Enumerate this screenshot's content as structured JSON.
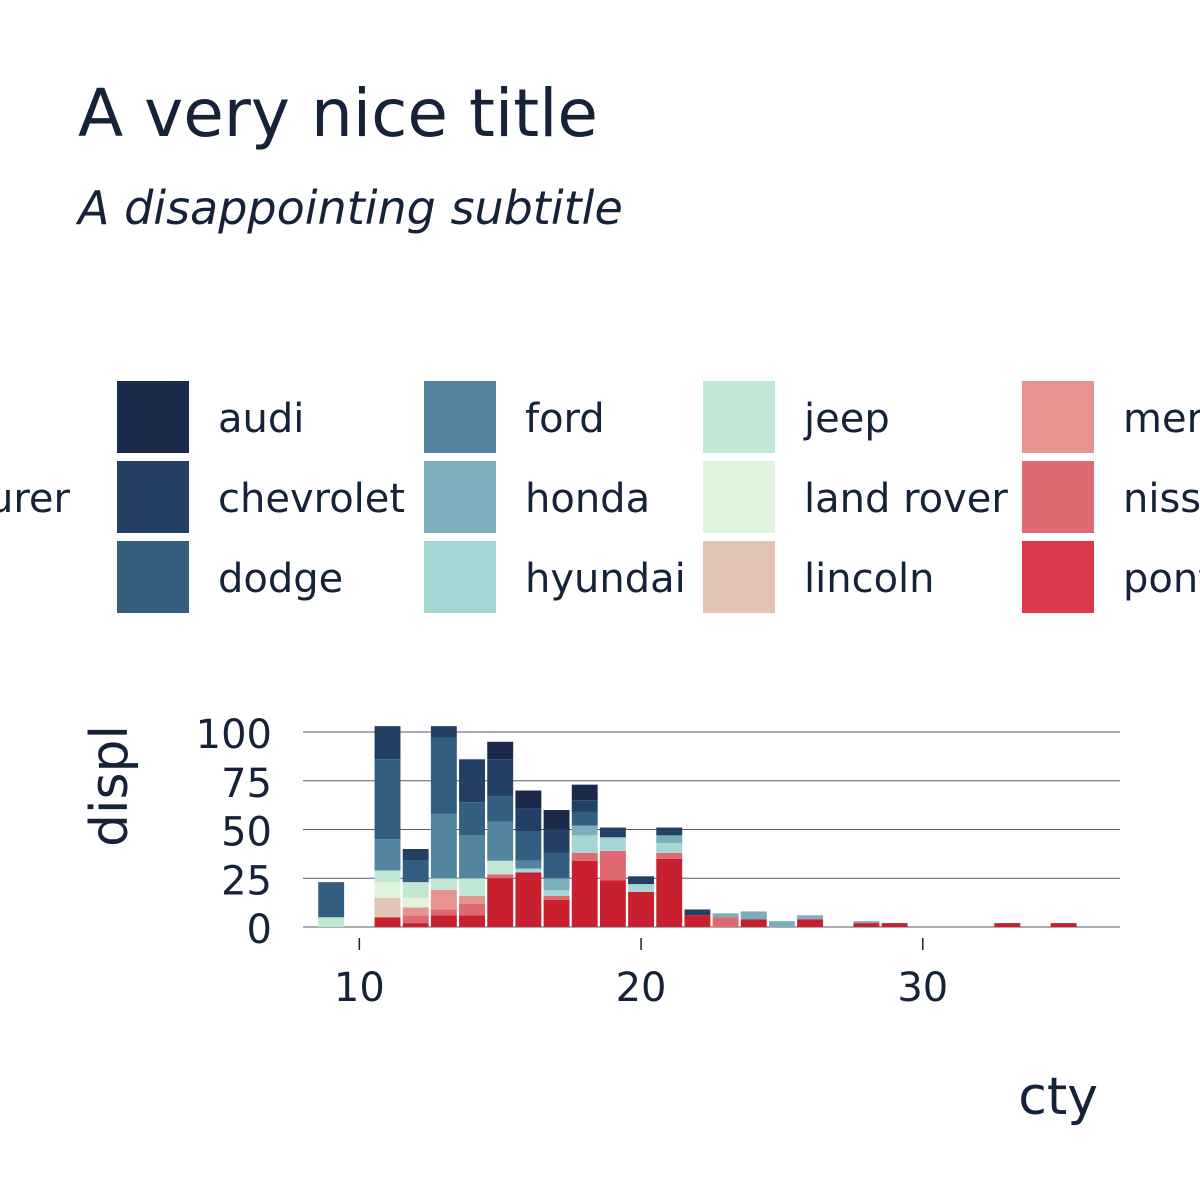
{
  "title": "A very nice title",
  "subtitle": "A disappointing subtitle",
  "chart_data": {
    "type": "bar",
    "stacked": true,
    "title": "A very nice title",
    "subtitle": "A disappointing subtitle",
    "xlabel": "cty",
    "ylabel": "displ",
    "legend_title_visible": "urer",
    "xlim": [
      8,
      37
    ],
    "ylim": [
      0,
      100
    ],
    "xticks": [
      10,
      20,
      30
    ],
    "yticks": [
      0,
      25,
      50,
      75,
      100
    ],
    "grid": "horizontal",
    "legend": {
      "placement": "top",
      "entries": [
        {
          "name": "audi",
          "color": "#1b2a4a"
        },
        {
          "name": "chevrolet",
          "color": "#233f63"
        },
        {
          "name": "dodge",
          "color": "#345e80"
        },
        {
          "name": "ford",
          "color": "#52849f"
        },
        {
          "name": "honda",
          "color": "#7aaebb"
        },
        {
          "name": "hyundai",
          "color": "#a4d6d4"
        },
        {
          "name": "jeep",
          "color": "#c0e6d4"
        },
        {
          "name": "land rover",
          "color": "#dff4da"
        },
        {
          "name": "lincoln",
          "color": "#e2c4b7"
        },
        {
          "name": "mercury",
          "color": "#e6948f"
        },
        {
          "name": "nissan",
          "color": "#e06870"
        },
        {
          "name": "pontiac",
          "color": "#dc3a4a"
        }
      ]
    },
    "series_colors_unlisted": [
      "#c8202f",
      "#b81c2c",
      "#a51a28"
    ],
    "bins": [
      {
        "x": 9,
        "stack": [
          {
            "c": "#c0e6d4",
            "v": 5
          },
          {
            "c": "#345e80",
            "v": 18
          }
        ]
      },
      {
        "x": 11,
        "stack": [
          {
            "c": "#c8202f",
            "v": 5
          },
          {
            "c": "#e2c4b7",
            "v": 10
          },
          {
            "c": "#dff4da",
            "v": 8
          },
          {
            "c": "#c0e6d4",
            "v": 6
          },
          {
            "c": "#52849f",
            "v": 16
          },
          {
            "c": "#345e80",
            "v": 41
          },
          {
            "c": "#233f63",
            "v": 17
          }
        ]
      },
      {
        "x": 12,
        "stack": [
          {
            "c": "#c8202f",
            "v": 2
          },
          {
            "c": "#e06870",
            "v": 4
          },
          {
            "c": "#e6948f",
            "v": 4
          },
          {
            "c": "#dff4da",
            "v": 5
          },
          {
            "c": "#c0e6d4",
            "v": 8
          },
          {
            "c": "#345e80",
            "v": 11
          },
          {
            "c": "#233f63",
            "v": 6
          }
        ]
      },
      {
        "x": 13,
        "stack": [
          {
            "c": "#c8202f",
            "v": 6
          },
          {
            "c": "#e06870",
            "v": 3
          },
          {
            "c": "#e6948f",
            "v": 10
          },
          {
            "c": "#c0e6d4",
            "v": 6
          },
          {
            "c": "#52849f",
            "v": 33
          },
          {
            "c": "#345e80",
            "v": 39
          },
          {
            "c": "#233f63",
            "v": 6
          }
        ]
      },
      {
        "x": 14,
        "stack": [
          {
            "c": "#c8202f",
            "v": 6
          },
          {
            "c": "#e06870",
            "v": 6
          },
          {
            "c": "#e6948f",
            "v": 4
          },
          {
            "c": "#c0e6d4",
            "v": 9
          },
          {
            "c": "#52849f",
            "v": 22
          },
          {
            "c": "#345e80",
            "v": 17
          },
          {
            "c": "#233f63",
            "v": 22
          }
        ]
      },
      {
        "x": 15,
        "stack": [
          {
            "c": "#c8202f",
            "v": 25
          },
          {
            "c": "#e06870",
            "v": 2
          },
          {
            "c": "#c0e6d4",
            "v": 7
          },
          {
            "c": "#52849f",
            "v": 20
          },
          {
            "c": "#345e80",
            "v": 13
          },
          {
            "c": "#233f63",
            "v": 19
          },
          {
            "c": "#1b2a4a",
            "v": 9
          }
        ]
      },
      {
        "x": 16,
        "stack": [
          {
            "c": "#c8202f",
            "v": 28
          },
          {
            "c": "#a4d6d4",
            "v": 2
          },
          {
            "c": "#52849f",
            "v": 4
          },
          {
            "c": "#345e80",
            "v": 15
          },
          {
            "c": "#233f63",
            "v": 12
          },
          {
            "c": "#1b2a4a",
            "v": 9
          }
        ]
      },
      {
        "x": 17,
        "stack": [
          {
            "c": "#c8202f",
            "v": 14
          },
          {
            "c": "#e06870",
            "v": 2
          },
          {
            "c": "#a4d6d4",
            "v": 3
          },
          {
            "c": "#7aaebb",
            "v": 6
          },
          {
            "c": "#345e80",
            "v": 13
          },
          {
            "c": "#233f63",
            "v": 12
          },
          {
            "c": "#1b2a4a",
            "v": 10
          }
        ]
      },
      {
        "x": 18,
        "stack": [
          {
            "c": "#c8202f",
            "v": 34
          },
          {
            "c": "#e06870",
            "v": 4
          },
          {
            "c": "#a4d6d4",
            "v": 9
          },
          {
            "c": "#7aaebb",
            "v": 5
          },
          {
            "c": "#345e80",
            "v": 7
          },
          {
            "c": "#233f63",
            "v": 6
          },
          {
            "c": "#1b2a4a",
            "v": 8
          }
        ]
      },
      {
        "x": 19,
        "stack": [
          {
            "c": "#c8202f",
            "v": 24
          },
          {
            "c": "#e06870",
            "v": 15
          },
          {
            "c": "#a4d6d4",
            "v": 7
          },
          {
            "c": "#233f63",
            "v": 5
          }
        ]
      },
      {
        "x": 20,
        "stack": [
          {
            "c": "#c8202f",
            "v": 18
          },
          {
            "c": "#a4d6d4",
            "v": 4
          },
          {
            "c": "#233f63",
            "v": 4
          }
        ]
      },
      {
        "x": 21,
        "stack": [
          {
            "c": "#c8202f",
            "v": 35
          },
          {
            "c": "#e06870",
            "v": 3
          },
          {
            "c": "#a4d6d4",
            "v": 5
          },
          {
            "c": "#7aaebb",
            "v": 4
          },
          {
            "c": "#233f63",
            "v": 4
          }
        ]
      },
      {
        "x": 22,
        "stack": [
          {
            "c": "#c8202f",
            "v": 6
          },
          {
            "c": "#233f63",
            "v": 3
          }
        ]
      },
      {
        "x": 23,
        "stack": [
          {
            "c": "#e06870",
            "v": 5
          },
          {
            "c": "#7aaebb",
            "v": 2
          }
        ]
      },
      {
        "x": 24,
        "stack": [
          {
            "c": "#c8202f",
            "v": 4
          },
          {
            "c": "#7aaebb",
            "v": 4
          }
        ]
      },
      {
        "x": 25,
        "stack": [
          {
            "c": "#7aaebb",
            "v": 3
          }
        ]
      },
      {
        "x": 26,
        "stack": [
          {
            "c": "#c8202f",
            "v": 4
          },
          {
            "c": "#7aaebb",
            "v": 2
          }
        ]
      },
      {
        "x": 28,
        "stack": [
          {
            "c": "#c8202f",
            "v": 2
          },
          {
            "c": "#7aaebb",
            "v": 1
          }
        ]
      },
      {
        "x": 29,
        "stack": [
          {
            "c": "#c8202f",
            "v": 2
          }
        ]
      },
      {
        "x": 33,
        "stack": [
          {
            "c": "#c8202f",
            "v": 2
          }
        ]
      },
      {
        "x": 35,
        "stack": [
          {
            "c": "#c8202f",
            "v": 2
          }
        ]
      }
    ]
  }
}
